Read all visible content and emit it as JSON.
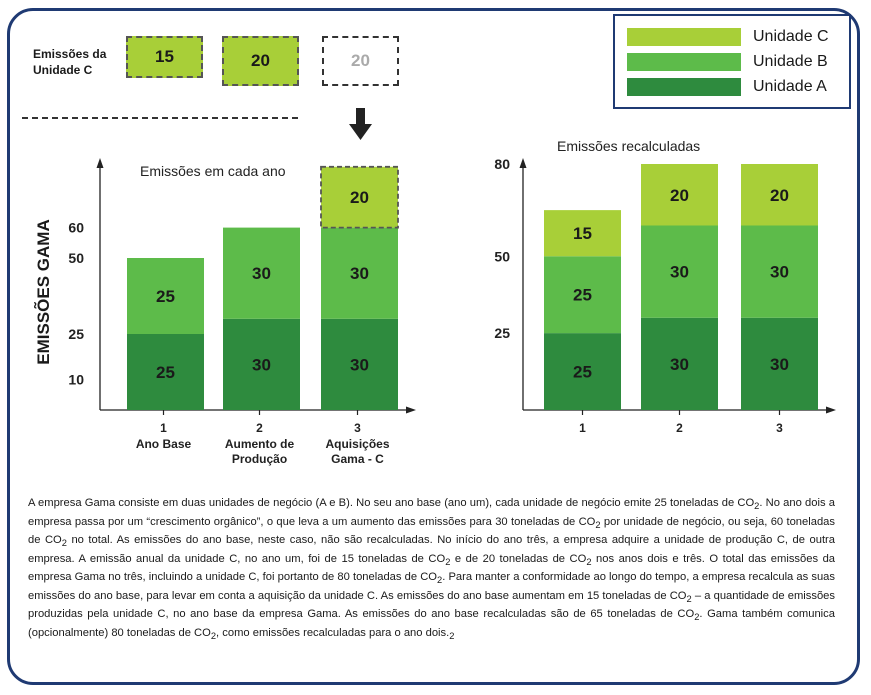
{
  "unit_c_section": {
    "label_line1": "Emissões da",
    "label_line2": "Unidade C",
    "values": [
      "15",
      "20",
      "20"
    ]
  },
  "legend": {
    "items": [
      {
        "label": "Unidade C",
        "color": "#a8cf38"
      },
      {
        "label": "Unidade B",
        "color": "#5dbb4a"
      },
      {
        "label": "Unidade A",
        "color": "#2e8b3e"
      }
    ]
  },
  "colors": {
    "unit_a": "#2e8b3e",
    "unit_b": "#5dbb4a",
    "unit_c": "#a8cf38",
    "axis": "#222222",
    "frame": "#1f3a73",
    "arrow": "#222222"
  },
  "y_axis_label": "EMISSÕES GAMA",
  "chart_data": [
    {
      "type": "bar",
      "stacked": true,
      "title": "Emissões em cada ano",
      "categories": [
        "1",
        "2",
        "3"
      ],
      "category_labels": [
        [
          "Ano Base"
        ],
        [
          "Aumento de",
          "Produção"
        ],
        [
          "Aquisições",
          "Gama - C"
        ]
      ],
      "ytick_labels": [
        "10",
        "25",
        "50",
        "60"
      ],
      "series": [
        {
          "name": "Unidade A",
          "values": [
            25,
            30,
            30
          ]
        },
        {
          "name": "Unidade B",
          "values": [
            25,
            30,
            30
          ]
        },
        {
          "name": "Unidade C",
          "values": [
            0,
            0,
            20
          ],
          "dashed_outline": true
        }
      ],
      "grid": false
    },
    {
      "type": "bar",
      "stacked": true,
      "title": "Emissões recalculadas",
      "categories": [
        "1",
        "2",
        "3"
      ],
      "ytick_labels": [
        "25",
        "50",
        "80"
      ],
      "series": [
        {
          "name": "Unidade A",
          "values": [
            25,
            30,
            30
          ]
        },
        {
          "name": "Unidade B",
          "values": [
            25,
            30,
            30
          ]
        },
        {
          "name": "Unidade C",
          "values": [
            15,
            20,
            20
          ]
        }
      ],
      "grid": false
    }
  ],
  "caption": {
    "part1": "A empresa Gama consiste em duas unidades de negócio (A e B). No seu ano base (ano um), cada unidade de negócio emite 25 toneladas de CO",
    "part2": ". No ano dois a empresa passa por um “crescimento orgânico”, o que leva a um aumento das emissões para 30 toneladas de CO",
    "part3": " por unidade de negócio, ou seja, 60 toneladas de CO",
    "part4": " no total. As emissões do ano base, neste caso, não são recalculadas. No início do ano três, a empresa adquire a unidade de produção C, de outra empresa. A emissão anual da unidade C, no ano um, foi de 15 toneladas de CO",
    "part5": " e de 20 toneladas de CO",
    "part6": " nos anos dois e três. O total das emissões da empresa Gama no três, incluindo a unidade C, foi portanto de 80 toneladas de CO",
    "part7": ". Para manter a conformidade ao longo do tempo, a empresa recalcula as suas emissões do ano base, para levar em conta a aquisição da unidade C. As emissões do ano base aumentam em 15 toneladas de CO",
    "part8": " – a quantidade de emissões produzidas pela unidade C, no ano base da empresa Gama. As emissões do ano base recalculadas são de 65 toneladas de CO",
    "part9": ". Gama também comunica (opcionalmente) 80 toneladas de CO",
    "part10": ", como emissões recalculadas para o ano dois.",
    "subscript": "2"
  }
}
